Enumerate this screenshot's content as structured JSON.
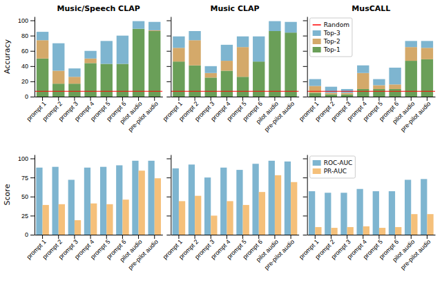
{
  "chart_data": [
    {
      "type": "bar",
      "title": "Music/Speech CLAP",
      "y_label": "Accuracy",
      "stacked": true,
      "categories": [
        "prompt 1",
        "prompt 2",
        "prompt 3",
        "prompt 4",
        "prompt 5",
        "prompt 6",
        "pilot audio",
        "pre-pilot audio"
      ],
      "series": [
        {
          "name": "Top-1",
          "color": "#6a9f58",
          "values": [
            50,
            17,
            17,
            44,
            43,
            43,
            89,
            86
          ]
        },
        {
          "name": "Top-2",
          "color": "#d4a96a",
          "values": [
            24,
            17,
            9,
            6,
            0,
            0,
            0,
            1
          ]
        },
        {
          "name": "Top-3",
          "color": "#7eb5d0",
          "values": [
            11,
            36,
            11,
            10,
            30,
            37,
            10,
            11
          ]
        }
      ],
      "reference_lines": [
        {
          "name": "Random",
          "value": 7,
          "color": "red"
        }
      ],
      "ylim": [
        0,
        105
      ],
      "yticks": [
        0,
        20,
        40,
        60,
        80,
        100
      ]
    },
    {
      "type": "bar",
      "title": "Music CLAP",
      "stacked": true,
      "tick_labels": "x",
      "categories": [
        "prompt 1",
        "prompt 2",
        "prompt 3",
        "prompt 4",
        "prompt 5",
        "prompt 6",
        "pilot audio",
        "pre-pilot audio"
      ],
      "series": [
        {
          "name": "Top-1",
          "color": "#6a9f58",
          "values": [
            46,
            41,
            25,
            34,
            26,
            46,
            86,
            84
          ]
        },
        {
          "name": "Top-2",
          "color": "#d4a96a",
          "values": [
            18,
            33,
            6,
            13,
            39,
            0,
            0,
            0
          ]
        },
        {
          "name": "Top-3",
          "color": "#7eb5d0",
          "values": [
            15,
            12,
            9,
            21,
            14,
            33,
            13,
            14
          ]
        }
      ],
      "reference_lines": [
        {
          "name": "Random",
          "value": 7,
          "color": "red"
        }
      ],
      "ylim": [
        0,
        105
      ],
      "yticks": [
        0,
        20,
        40,
        60,
        80,
        100
      ]
    },
    {
      "type": "bar",
      "title": "MusCALL",
      "stacked": true,
      "tick_labels": "x",
      "legend": "upper left",
      "categories": [
        "prompt 1",
        "prompt 2",
        "prompt 3",
        "prompt 4",
        "prompt 5",
        "prompt 6",
        "pilot audio",
        "pre-pilot audio"
      ],
      "series": [
        {
          "name": "Top-1",
          "color": "#6a9f58",
          "values": [
            5,
            3,
            3,
            10,
            10,
            10,
            47,
            49
          ]
        },
        {
          "name": "Top-2",
          "color": "#d4a96a",
          "values": [
            9,
            2,
            2,
            21,
            5,
            6,
            18,
            15
          ]
        },
        {
          "name": "Top-3",
          "color": "#7eb5d0",
          "values": [
            9,
            8,
            5,
            10,
            8,
            22,
            8,
            9
          ]
        }
      ],
      "reference_lines": [
        {
          "name": "Random",
          "value": 7,
          "color": "red"
        }
      ],
      "ylim": [
        0,
        105
      ],
      "yticks": [
        0,
        20,
        40,
        60,
        80,
        100
      ]
    },
    {
      "type": "bar",
      "y_label": "Score",
      "categories": [
        "prompt 1",
        "prompt 2",
        "prompt 3",
        "prompt 4",
        "prompt 5",
        "prompt 6",
        "pilot audio",
        "pre-pilot audio"
      ],
      "series": [
        {
          "name": "ROC-AUC",
          "color": "#7eb5d0",
          "values": [
            88,
            89,
            72,
            88,
            89,
            91,
            97,
            97
          ]
        },
        {
          "name": "PR-AUC",
          "color": "#f5c07a",
          "values": [
            39,
            40,
            19,
            41,
            40,
            46,
            84,
            74
          ]
        }
      ],
      "ylim": [
        0,
        105
      ],
      "yticks": [
        0,
        25,
        50,
        75,
        100
      ]
    },
    {
      "type": "bar",
      "tick_labels": "x",
      "categories": [
        "prompt 1",
        "prompt 2",
        "prompt 3",
        "prompt 4",
        "prompt 5",
        "prompt 6",
        "pilot audio",
        "pre-pilot audio"
      ],
      "series": [
        {
          "name": "ROC-AUC",
          "color": "#7eb5d0",
          "values": [
            87,
            92,
            75,
            88,
            85,
            93,
            97,
            96
          ]
        },
        {
          "name": "PR-AUC",
          "color": "#f5c07a",
          "values": [
            44,
            51,
            25,
            44,
            39,
            56,
            78,
            69
          ]
        }
      ],
      "ylim": [
        0,
        105
      ],
      "yticks": [
        0,
        25,
        50,
        75,
        100
      ]
    },
    {
      "type": "bar",
      "tick_labels": "x",
      "legend": "upper left",
      "categories": [
        "prompt 1",
        "prompt 2",
        "prompt 3",
        "prompt 4",
        "prompt 5",
        "prompt 6",
        "pilot audio",
        "pre-pilot audio"
      ],
      "series": [
        {
          "name": "ROC-AUC",
          "color": "#7eb5d0",
          "values": [
            57,
            55,
            55,
            60,
            57,
            57,
            72,
            73
          ]
        },
        {
          "name": "PR-AUC",
          "color": "#f5c07a",
          "values": [
            10,
            9,
            10,
            11,
            9,
            10,
            27,
            27
          ]
        }
      ],
      "ylim": [
        0,
        105
      ],
      "yticks": [
        0,
        25,
        50,
        75,
        100
      ]
    }
  ]
}
